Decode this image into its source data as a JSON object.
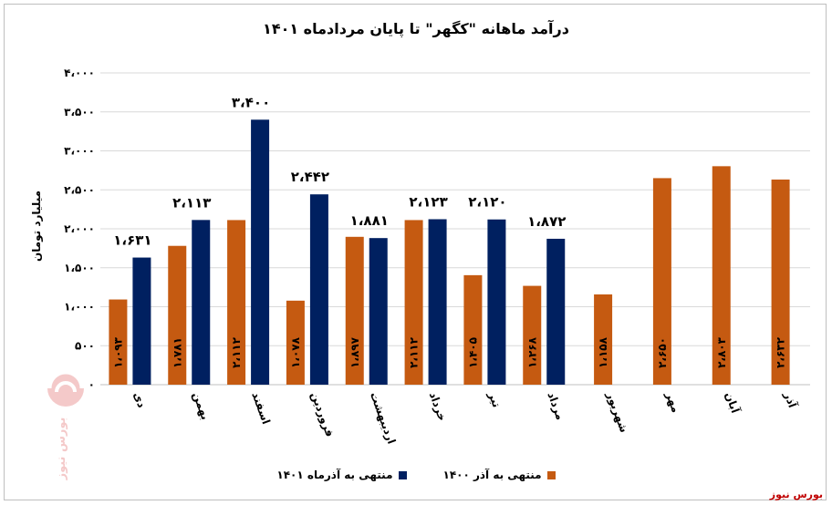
{
  "chart_data": {
    "type": "bar",
    "title": "درآمد ماهانه \"کگهر\" تا پایان مردادماه ۱۴۰۱",
    "ylabel": "میلیارد تومان",
    "ylim": [
      0,
      4000
    ],
    "yticks": [
      0,
      500,
      1000,
      1500,
      2000,
      2500,
      3000,
      3500,
      4000
    ],
    "ytick_labels": [
      "۰",
      "۵۰۰",
      "۱،۰۰۰",
      "۱،۵۰۰",
      "۲،۰۰۰",
      "۲،۵۰۰",
      "۳،۰۰۰",
      "۳،۵۰۰",
      "۴،۰۰۰"
    ],
    "grid": true,
    "legend_position": "bottom",
    "categories": [
      "دی",
      "بهمن",
      "اسفند",
      "فروردین",
      "اردیبهشت",
      "خرداد",
      "تیر",
      "مرداد",
      "شهریور",
      "مهر",
      "آبان",
      "آذر"
    ],
    "series": [
      {
        "name": "منتهی به آذر ۱۴۰۰",
        "color": "#c55a11",
        "values": [
          1093,
          1781,
          2112,
          1078,
          1897,
          2112,
          1405,
          1268,
          1158,
          2650,
          2803,
          2632
        ],
        "labels": [
          "۱،۰۹۳",
          "۱،۷۸۱",
          "۲،۱۱۲",
          "۱،۰۷۸",
          "۱،۸۹۷",
          "۲،۱۱۲",
          "۱،۴۰۵",
          "۱،۲۶۸",
          "۱،۱۵۸",
          "۲،۶۵۰",
          "۲،۸۰۳",
          "۲،۶۳۲"
        ]
      },
      {
        "name": "منتهی به آذرماه ۱۴۰۱",
        "color": "#002060",
        "values": [
          1631,
          2113,
          3400,
          2442,
          1881,
          2123,
          2120,
          1872,
          null,
          null,
          null,
          null
        ],
        "labels": [
          "۱،۶۳۱",
          "۲،۱۱۳",
          "۳،۴۰۰",
          "۲،۴۴۲",
          "۱،۸۸۱",
          "۲،۱۲۳",
          "۲،۱۲۰",
          "۱،۸۷۲",
          null,
          null,
          null,
          null
        ]
      }
    ]
  },
  "brand": "بورس نیوز",
  "watermark_text": "بورس نیوز"
}
